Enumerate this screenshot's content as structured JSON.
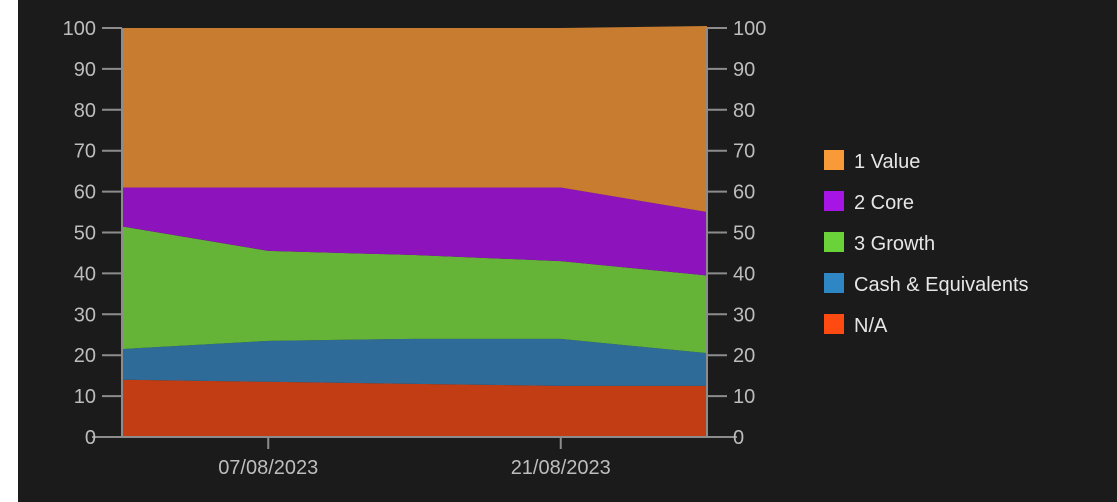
{
  "chart_data": {
    "type": "area",
    "stacked": true,
    "x": [
      "31/07/2023",
      "07/08/2023",
      "14/08/2023",
      "21/08/2023",
      "28/08/2023"
    ],
    "x_tick_labels": [
      "07/08/2023",
      "21/08/2023"
    ],
    "ylim": [
      0,
      100
    ],
    "y_ticks": [
      0,
      10,
      20,
      30,
      40,
      50,
      60,
      70,
      80,
      90,
      100
    ],
    "y_axis_sides": [
      "left",
      "right"
    ],
    "grid": false,
    "legend_position": "right",
    "series": [
      {
        "name": "N/A",
        "color": "#c23d13",
        "legend_color": "#ff4a12",
        "values": [
          14,
          13.5,
          13,
          12.5,
          12.5
        ]
      },
      {
        "name": "Cash & Equivalents",
        "color": "#2e6b98",
        "legend_color": "#2f86c4",
        "values": [
          7.5,
          10,
          11,
          11.5,
          8
        ]
      },
      {
        "name": "3 Growth",
        "color": "#65b337",
        "legend_color": "#6ad33a",
        "values": [
          30,
          22,
          20.5,
          19,
          19
        ]
      },
      {
        "name": "2 Core",
        "color": "#8d13bd",
        "legend_color": "#a614e6",
        "values": [
          9.5,
          15.5,
          16.5,
          18,
          15.5
        ]
      },
      {
        "name": "1 Value",
        "color": "#c87c30",
        "legend_color": "#f79a37",
        "values": [
          39,
          39,
          39,
          39,
          45.5
        ]
      }
    ],
    "legend_order": [
      "1 Value",
      "2 Core",
      "3 Growth",
      "Cash & Equivalents",
      "N/A"
    ]
  }
}
